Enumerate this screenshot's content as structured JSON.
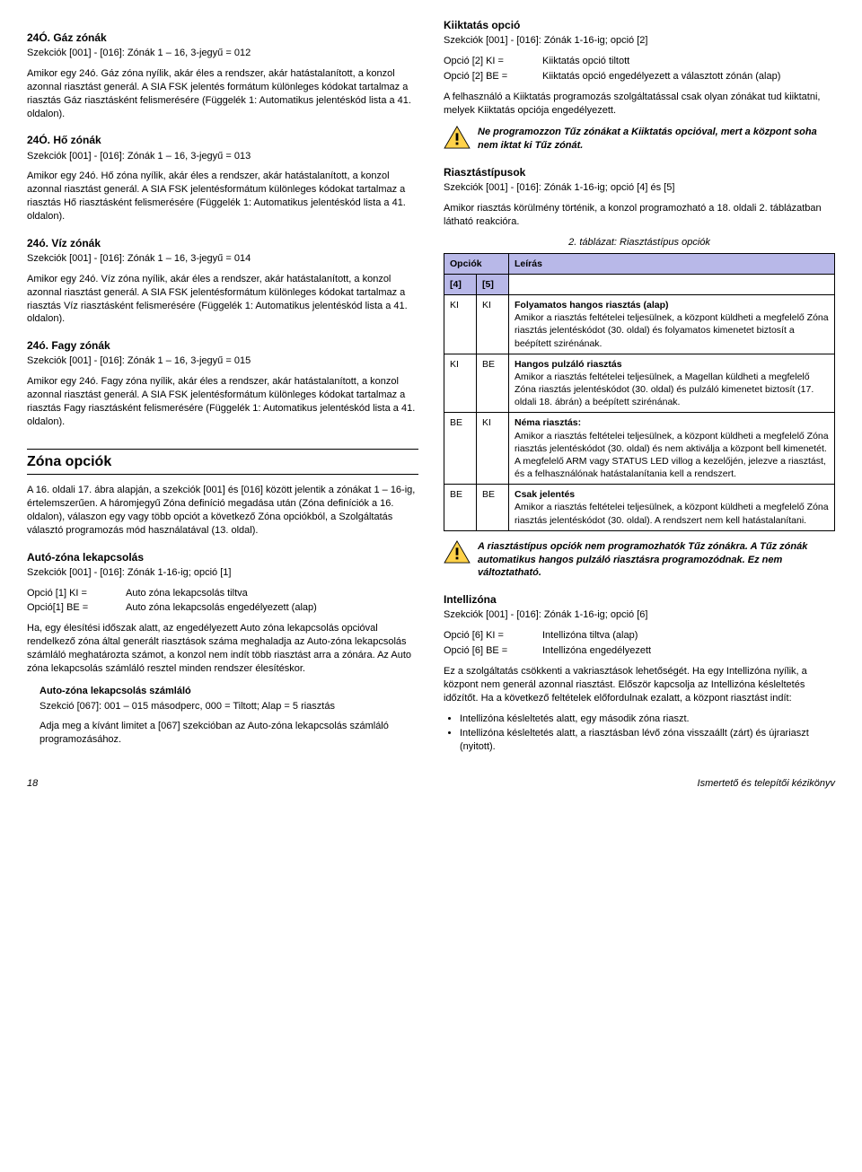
{
  "left": {
    "s24O_gaz": {
      "title": "24Ó. Gáz zónák",
      "sub": "Szekciók [001] - [016]: Zónák 1 – 16, 3-jegyű = 012",
      "body": "Amikor egy 24ó. Gáz zóna nyílik, akár éles a rendszer, akár hatástalanított, a konzol azonnal riasztást generál. A SIA FSK jelentés formátum különleges kódokat tartalmaz a riasztás Gáz riasztásként felismerésére (Függelék 1: Automatikus jelentéskód lista a 41. oldalon)."
    },
    "s24O_ho": {
      "title": "24Ó. Hő zónák",
      "sub": "Szekciók [001] - [016]: Zónák 1 – 16, 3-jegyű = 013",
      "body": "Amikor egy 24ó. Hő zóna nyílik, akár éles a rendszer, akár hatástalanított, a konzol azonnal riasztást generál. A SIA FSK jelentésformátum különleges kódokat tartalmaz a riasztás Hő riasztásként felismerésére (Függelék 1: Automatikus jelentéskód lista a 41. oldalon)."
    },
    "s24o_viz": {
      "title": "24ó. Víz zónák",
      "sub": "Szekciók [001] - [016]: Zónák 1 – 16, 3-jegyű = 014",
      "body": "Amikor egy 24ó. Víz zóna nyílik, akár éles a rendszer, akár hatástalanított, a konzol azonnal riasztást generál. A SIA FSK jelentésformátum különleges kódokat tartalmaz a riasztás Víz riasztásként felismerésére (Függelék 1: Automatikus jelentéskód lista a 41. oldalon)."
    },
    "s24o_fagy": {
      "title": "24ó. Fagy zónák",
      "sub": "Szekciók [001] - [016]: Zónák 1 – 16, 3-jegyű = 015",
      "body": "Amikor egy 24ó. Fagy zóna nyílik, akár éles a rendszer, akár hatástalanított, a konzol azonnal riasztást generál. A SIA FSK jelentésformátum különleges kódokat tartalmaz a riasztás Fagy riasztásként felismerésére (Függelék 1: Automatikus jelentéskód lista a 41. oldalon)."
    },
    "zona_opciok": {
      "title": "Zóna opciók",
      "body": "A 16. oldali 17. ábra alapján, a szekciók [001] és [016] között jelentik a zónákat 1 – 16-ig, értelemszerűen. A háromjegyű Zóna definíció megadása után (Zóna definíciók a 16. oldalon), válaszon egy vagy több opciót a következő Zóna opciókból, a Szolgáltatás választó programozás mód használatával (13. oldal)."
    },
    "auto_zona": {
      "title": "Autó-zóna lekapcsolás",
      "sub": "Szekciók [001] - [016]: Zónák 1-16-ig; opció [1]",
      "opt1_k": "Opció [1] KI =",
      "opt1_v": "Auto zóna lekapcsolás tiltva",
      "opt2_k": "Opció[1] BE =",
      "opt2_v": "Auto zóna lekapcsolás engedélyezett (alap)",
      "body": "Ha, egy élesítési időszak alatt, az engedélyezett Auto zóna lekapcsolás opcióval rendelkező zóna által generált riasztások száma meghaladja az Auto-zóna lekapcsolás számláló meghatározta számot, a konzol nem indít több riasztást arra a zónára. Az  Auto zóna lekapcsolás számláló resztel minden rendszer élesítéskor.",
      "sz_title": "Auto-zóna lekapcsolás számláló",
      "sz_sub": "Szekció [067]: 001 – 015 másodperc, 000 = Tiltott; Alap = 5 riasztás",
      "sz_body": "Adja meg a kívánt limitet a [067] szekcióban az Auto-zóna lekapcsolás számláló programozásához."
    }
  },
  "right": {
    "kiiktatas": {
      "title": "Kiiktatás opció",
      "sub": "Szekciók [001] - [016]: Zónák 1-16-ig; opció [2]",
      "opt1_k": "Opció [2] KI =",
      "opt1_v": "Kiiktatás opció tiltott",
      "opt2_k": "Opció [2] BE =",
      "opt2_v": "Kiiktatás opció engedélyezett a választott zónán (alap)",
      "body": "A felhasználó a Kiiktatás programozás szolgáltatással csak olyan zónákat tud kiiktatni, melyek Kiiktatás opciója engedélyezett.",
      "warn": "Ne programozzon Tűz zónákat a Kiiktatás opcióval, mert a központ soha nem iktat ki Tűz zónát."
    },
    "riasztastipusok": {
      "title": "Riasztástípusok",
      "sub": "Szekciók [001] - [016]: Zónák 1-16-ig; opció [4] és [5]",
      "body": "Amikor riasztás körülmény történik, a konzol programozható a 18. oldali 2. táblázatban látható reakcióra.",
      "caption": "2. táblázat: Riasztástípus opciók",
      "th_opciok": "Opciók",
      "th_leiras": "Leírás",
      "th_4": "[4]",
      "th_5": "[5]",
      "rows": [
        {
          "c4": "KI",
          "c5": "KI",
          "t": "Folyamatos hangos riasztás (alap)",
          "d": "Amikor a riasztás feltételei teljesülnek, a központ küldheti a megfelelő Zóna riasztás jelentéskódot (30. oldal) és folyamatos kimenetet biztosít a beépített szirénának."
        },
        {
          "c4": "KI",
          "c5": "BE",
          "t": "Hangos pulzáló riasztás",
          "d": "Amikor a riasztás feltételei teljesülnek, a Magellan küldheti a megfelelő Zóna riasztás jelentéskódot (30. oldal) és pulzáló kimenetet biztosít (17. oldali 18. ábrán) a beépített szirénának."
        },
        {
          "c4": "BE",
          "c5": "KI",
          "t": "Néma riasztás:",
          "d": "Amikor a riasztás feltételei teljesülnek, a központ küldheti a megfelelő Zóna riasztás jelentéskódot (30. oldal) és nem aktiválja a központ bell kimenetét. A megfelelő ARM vagy STATUS LED villog a kezelőjén, jelezve a riasztást, és a felhasználónak hatástalanítania kell a rendszert."
        },
        {
          "c4": "BE",
          "c5": "BE",
          "t": "Csak jelentés",
          "d": "Amikor a riasztás feltételei teljesülnek, a központ küldheti a megfelelő Zóna riasztás jelentéskódot (30. oldal). A rendszert nem kell hatástalanítani."
        }
      ],
      "warn": "A riasztástípus opciók nem programozhatók Tűz zónákra. A Tűz zónák automatikus hangos pulzáló riasztásra programozódnak. Ez nem változtatható."
    },
    "intellizona": {
      "title": "Intellizóna",
      "sub": "Szekciók [001] - [016]: Zónák 1-16-ig; opció [6]",
      "opt1_k": "Opció [6] KI =",
      "opt1_v": "Intellizóna tiltva (alap)",
      "opt2_k": "Opció [6] BE =",
      "opt2_v": "Intellizóna engedélyezett",
      "body": "Ez a szolgáltatás csökkenti a vakriasztások lehetőségét. Ha egy Intellizóna nyílik, a központ nem generál azonnal riasztást. Először kapcsolja az Intellizóna késleltetés időzítőt. Ha a következő feltételek előfordulnak ezalatt, a központ riasztást indít:",
      "bullets": [
        "Intellizóna késleltetés alatt, egy második zóna riaszt.",
        "Intellizóna késleltetés alatt, a riasztásban lévő zóna visszaállt (zárt) és újrariaszt (nyitott)."
      ]
    }
  },
  "footer": {
    "page": "18",
    "doc": "Ismertető és telepítői kézikönyv"
  }
}
